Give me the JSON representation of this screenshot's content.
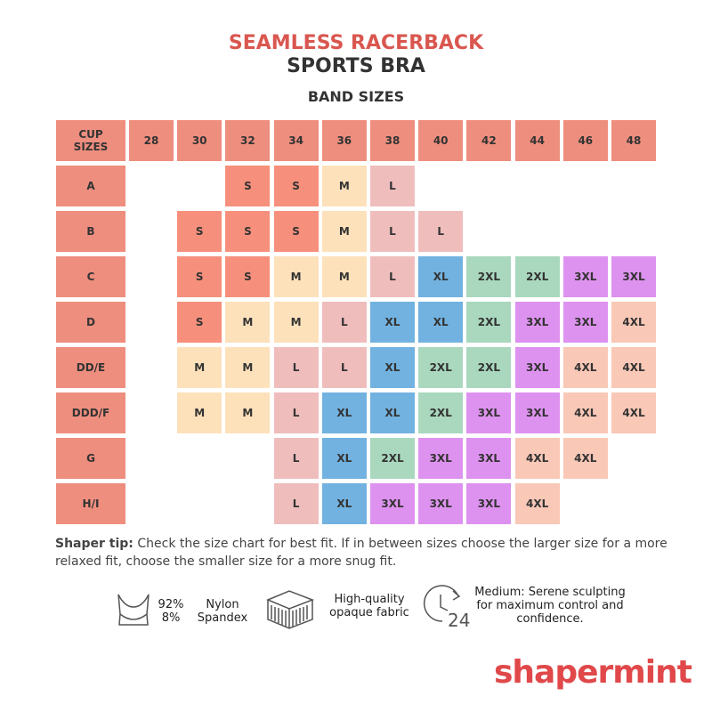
{
  "header": {
    "title_line1": "SEAMLESS RACERBACK",
    "title_line2": "SPORTS BRA",
    "subtitle": "BAND SIZES"
  },
  "table": {
    "corner": [
      "CUP",
      "SIZES"
    ],
    "bands": [
      "28",
      "30",
      "32",
      "34",
      "36",
      "38",
      "40",
      "42",
      "44",
      "46",
      "48"
    ],
    "rows": [
      {
        "cup": "A",
        "cells": [
          null,
          null,
          "S",
          "S",
          "M",
          "L",
          null,
          null,
          null,
          null,
          null
        ]
      },
      {
        "cup": "B",
        "cells": [
          null,
          "S",
          "S",
          "S",
          "M",
          "L",
          "L",
          null,
          null,
          null,
          null
        ]
      },
      {
        "cup": "C",
        "cells": [
          null,
          "S",
          "S",
          "M",
          "M",
          "L",
          "XL",
          "2XL",
          "2XL",
          "3XL",
          "3XL"
        ]
      },
      {
        "cup": "D",
        "cells": [
          null,
          "S",
          "M",
          "M",
          "L",
          "XL",
          "XL",
          "2XL",
          "3XL",
          "3XL",
          "4XL"
        ]
      },
      {
        "cup": "DD/E",
        "cells": [
          null,
          "M",
          "M",
          "L",
          "L",
          "XL",
          "2XL",
          "2XL",
          "3XL",
          "4XL",
          "4XL"
        ]
      },
      {
        "cup": "DDD/F",
        "cells": [
          null,
          "M",
          "M",
          "L",
          "XL",
          "XL",
          "2XL",
          "3XL",
          "3XL",
          "4XL",
          "4XL"
        ]
      },
      {
        "cup": "G",
        "cells": [
          null,
          null,
          null,
          "L",
          "XL",
          "2XL",
          "3XL",
          "3XL",
          "4XL",
          "4XL",
          null
        ]
      },
      {
        "cup": "H/I",
        "cells": [
          null,
          null,
          null,
          "L",
          "XL",
          "3XL",
          "3XL",
          "3XL",
          "4XL",
          null,
          null
        ]
      }
    ],
    "header_color": "#ee8e7e",
    "size_colors": {
      "S": "#f6907c",
      "M": "#fde1bb",
      "L": "#f0bdbd",
      "XL": "#72b2e0",
      "2XL": "#a9d8be",
      "3XL": "#de92ef",
      "4XL": "#f9c8b6"
    }
  },
  "tip": {
    "label": "Shaper tip:",
    "text": "Check the size chart for best fit. If in between sizes choose the larger size for a more relaxed fit, choose the smaller size for a more snug fit."
  },
  "features": {
    "percent": [
      "92%",
      "8%"
    ],
    "fibers": [
      "Nylon",
      "Spandex"
    ],
    "fabric": [
      "High-quality",
      "opaque fabric"
    ],
    "compression": [
      "Medium: Serene sculpting",
      "for maximum control and",
      "confidence."
    ],
    "icon_number": "24"
  },
  "brand": "shapermint"
}
